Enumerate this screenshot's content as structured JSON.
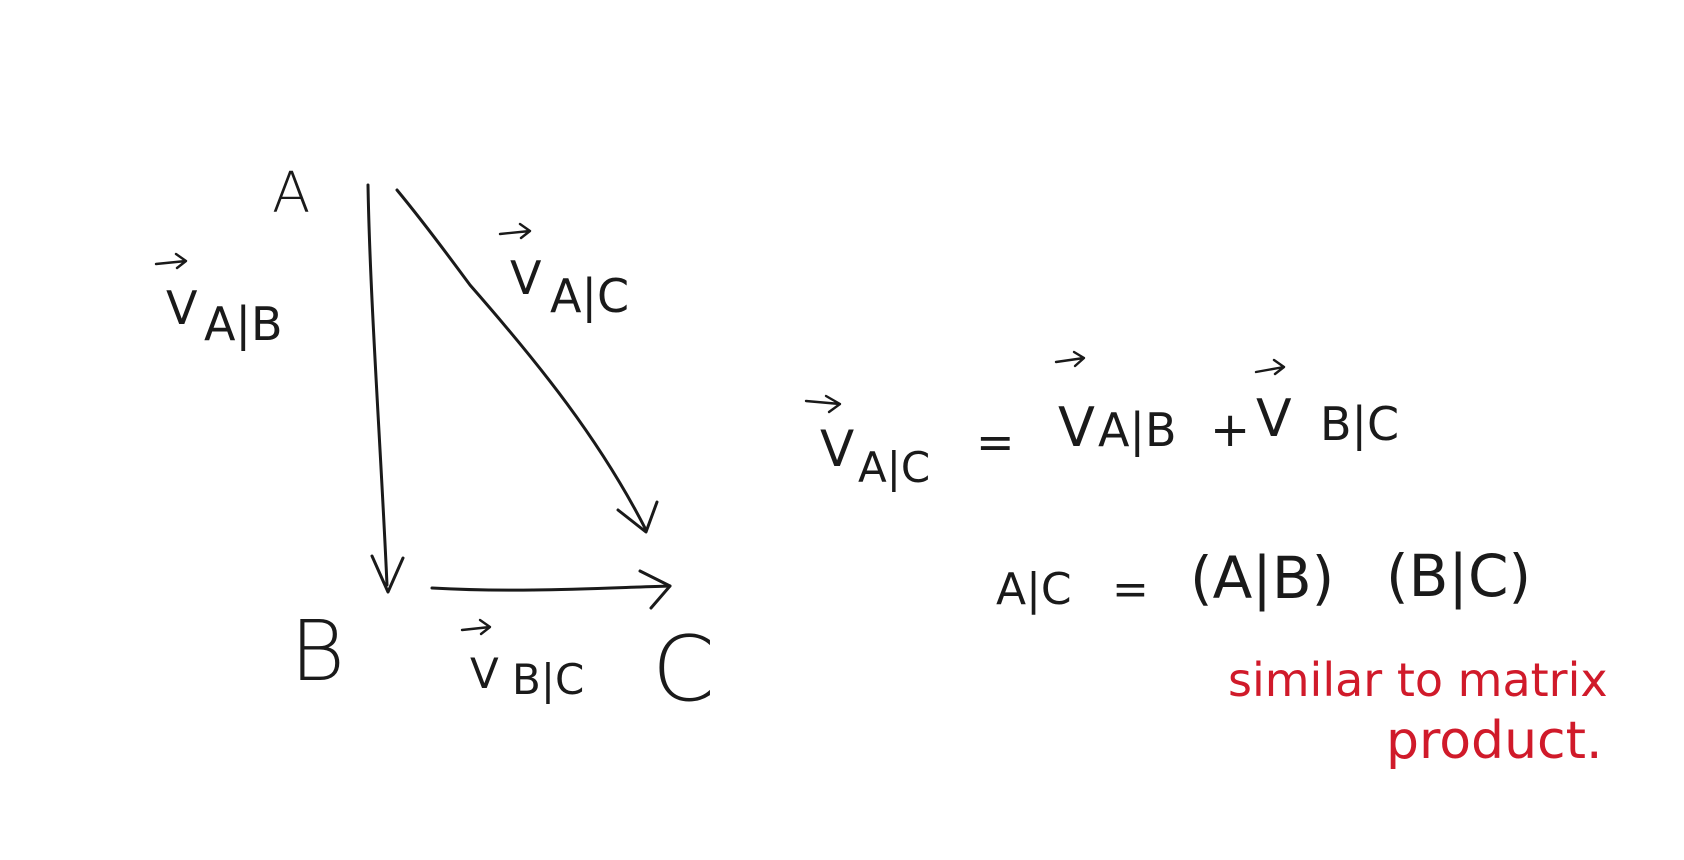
{
  "points": {
    "a": "A",
    "b": "B",
    "c": "C"
  },
  "vectors": {
    "ab": {
      "symbol": "V",
      "subscript": "A|B"
    },
    "ac": {
      "symbol": "V",
      "subscript": "A|C"
    },
    "bc": {
      "symbol": "V",
      "subscript": "B|C"
    }
  },
  "equations": {
    "vector_sum": {
      "lhs_symbol": "V",
      "lhs_subscript": "A|C",
      "equals": "=",
      "term1_symbol": "V",
      "term1_subscript": "A|B",
      "plus": "+",
      "term2_symbol": "V",
      "term2_subscript": "B|C"
    },
    "frame_product": {
      "lhs": "A|C",
      "equals": "=",
      "factor1": "(A|B)",
      "factor2": "(B|C)"
    }
  },
  "note": {
    "line1": "similar to matrix",
    "line2": "product."
  },
  "colors": {
    "ink": "#1a1a1a",
    "note": "#d01a2a",
    "background": "#ffffff"
  }
}
